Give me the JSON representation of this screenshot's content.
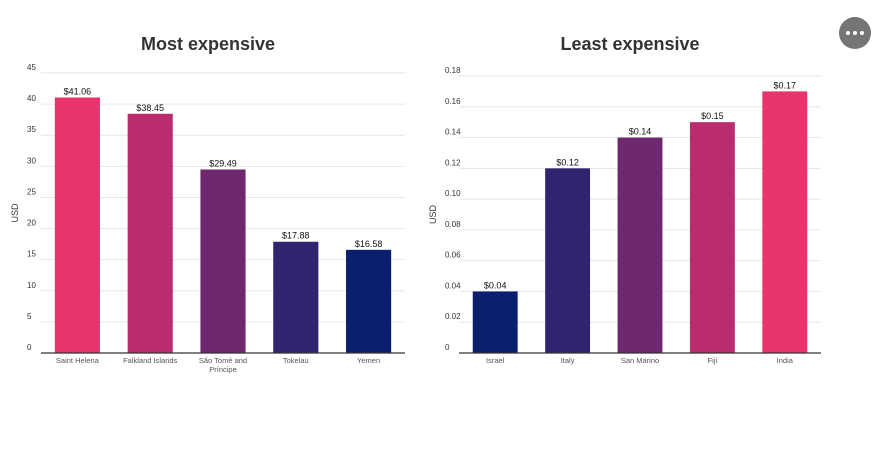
{
  "menu": {
    "icon": "more-horizontal-icon"
  },
  "colors": {
    "grid": "#e6e6e6",
    "axis": "#333333",
    "text": "#333333"
  },
  "chart_data": [
    {
      "type": "bar",
      "title": "Most expensive",
      "ylabel": "USD",
      "xlabel": "",
      "ylim": [
        0,
        45
      ],
      "yticks": [
        "0",
        "5",
        "10",
        "15",
        "20",
        "25",
        "30",
        "35",
        "40",
        "45"
      ],
      "categories": [
        [
          "Saint Helena"
        ],
        [
          "Falkland Islands"
        ],
        [
          "São Tomé and",
          "Príncipe"
        ],
        [
          "Tokelau"
        ],
        [
          "Yemen"
        ]
      ],
      "values": [
        41.06,
        38.45,
        29.49,
        17.88,
        16.58
      ],
      "labels": [
        "$41.06",
        "$38.45",
        "$29.49",
        "$17.88",
        "$16.58"
      ],
      "colors": [
        "#e8336d",
        "#b92d6e",
        "#6e2870",
        "#2e2470",
        "#0a1f6e"
      ],
      "grid": true
    },
    {
      "type": "bar",
      "title": "Least expensive",
      "ylabel": "USD",
      "xlabel": "",
      "ylim": [
        0,
        0.18
      ],
      "yticks": [
        "0",
        "0.02",
        "0.04",
        "0.06",
        "0.08",
        "0.10",
        "0.12",
        "0.14",
        "0.16",
        "0.18"
      ],
      "categories": [
        [
          "Israel"
        ],
        [
          "Italy"
        ],
        [
          "San Marino"
        ],
        [
          "Fiji"
        ],
        [
          "India"
        ]
      ],
      "values": [
        0.04,
        0.12,
        0.14,
        0.15,
        0.17
      ],
      "labels": [
        "$0.04",
        "$0.12",
        "$0.14",
        "$0.15",
        "$0.17"
      ],
      "colors": [
        "#0a1f6e",
        "#2e2470",
        "#6e2870",
        "#b92d6e",
        "#e8336d"
      ],
      "grid": true
    }
  ]
}
